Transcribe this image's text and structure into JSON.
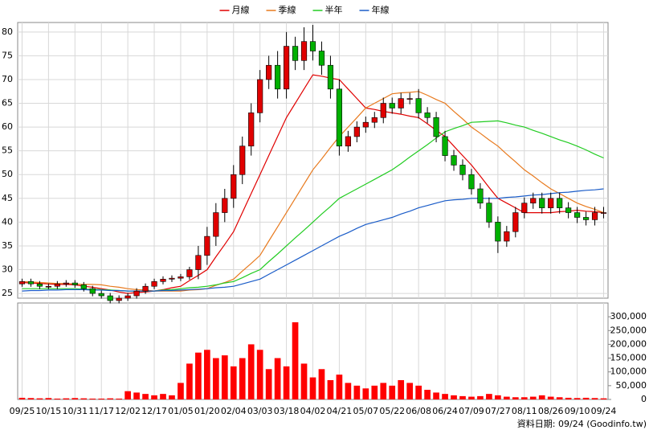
{
  "chart_data": {
    "type": "candlestick",
    "grid": true,
    "legend_position": "top",
    "up_color": "#e00000",
    "down_color": "#00b000",
    "categories": [
      "09/25",
      null,
      null,
      "10/15",
      null,
      null,
      "10/31",
      null,
      null,
      "11/17",
      null,
      null,
      "12/02",
      null,
      null,
      "12/17",
      null,
      null,
      "01/05",
      null,
      null,
      "01/20",
      null,
      null,
      "02/04",
      null,
      null,
      "03/03",
      null,
      null,
      "03/18",
      null,
      null,
      "04/02",
      null,
      null,
      "04/21",
      null,
      null,
      "05/07",
      null,
      null,
      "05/22",
      null,
      null,
      "06/08",
      null,
      null,
      "06/24",
      null,
      null,
      "07/09",
      null,
      null,
      "07/27",
      null,
      null,
      "08/11",
      null,
      null,
      "08/26",
      null,
      null,
      "09/10",
      null,
      null,
      "09/24"
    ],
    "open": [
      27,
      27.5,
      27,
      26.5,
      26.5,
      27,
      27.2,
      26.8,
      26,
      25,
      24.5,
      23.5,
      24,
      24.5,
      25.5,
      26.5,
      27.5,
      28,
      28.2,
      28.5,
      30,
      33,
      37,
      42,
      45,
      50,
      56,
      63,
      70,
      73,
      68,
      77,
      74,
      78,
      76,
      73,
      68,
      56,
      58,
      60,
      61,
      62,
      65,
      64,
      66,
      66,
      63,
      62,
      58,
      54,
      52,
      50,
      47,
      44,
      40,
      36,
      38,
      42,
      44,
      45,
      43,
      45,
      43,
      42,
      41,
      40.5,
      42
    ],
    "high": [
      28.1,
      28.1,
      27.6,
      27.1,
      27.6,
      27.8,
      27.8,
      27.4,
      26.6,
      25.6,
      25.1,
      24.6,
      25.1,
      26.1,
      27.1,
      28.1,
      28.6,
      28.8,
      29.1,
      30.6,
      35,
      39,
      44,
      47,
      52,
      58,
      65,
      72,
      75,
      76,
      80,
      79,
      81,
      81.5,
      78,
      75,
      70,
      59.2,
      61.2,
      62.2,
      63.2,
      66.2,
      66.2,
      67.2,
      67.2,
      68,
      64.2,
      63.2,
      59.2,
      55.2,
      53.2,
      51.2,
      48.2,
      45.2,
      41.2,
      39.2,
      43.2,
      45.2,
      46.2,
      46.2,
      46.2,
      46.2,
      44.2,
      43.2,
      42.2,
      43.2,
      43.2
    ],
    "low": [
      26.4,
      26.4,
      25.9,
      25.9,
      25.9,
      26.4,
      26.2,
      25.4,
      24.4,
      23.9,
      22.9,
      22.9,
      23.4,
      23.9,
      24.9,
      25.9,
      26.9,
      27.4,
      27.6,
      27.9,
      28,
      31,
      35,
      40,
      43,
      48,
      54,
      61,
      68,
      66,
      66,
      72,
      72,
      74,
      71,
      66,
      54,
      54.8,
      56.8,
      58.8,
      59.8,
      60.8,
      62.8,
      62.8,
      64.8,
      61.8,
      60.8,
      56.8,
      52.8,
      50.8,
      48.8,
      45.8,
      42.8,
      38.8,
      33.5,
      34.8,
      36.8,
      40.8,
      42.8,
      41.8,
      41.8,
      41.8,
      40.8,
      39.8,
      39.3,
      39.3,
      40.8
    ],
    "close": [
      27.5,
      27,
      26.5,
      26.5,
      27,
      27.2,
      26.8,
      26,
      25,
      24.5,
      23.5,
      24,
      24.5,
      25.5,
      26.5,
      27.5,
      28,
      28.2,
      28.5,
      30,
      33,
      37,
      42,
      45,
      50,
      56,
      63,
      70,
      73,
      68,
      77,
      74,
      78,
      76,
      73,
      68,
      56,
      58,
      60,
      61,
      62,
      65,
      64,
      66,
      66,
      63,
      62,
      58,
      54,
      52,
      50,
      47,
      44,
      40,
      36,
      38,
      42,
      44,
      45,
      43,
      45,
      43,
      42,
      41,
      40.5,
      42,
      42
    ],
    "ylim": [
      24,
      82
    ],
    "yticks": [
      25,
      30,
      35,
      40,
      45,
      50,
      55,
      60,
      65,
      70,
      75,
      80
    ],
    "series": [
      {
        "name": "月線",
        "color": "#e00000",
        "values": [
          27.3,
          27.2,
          27.1,
          27,
          26.9,
          26.9,
          26.8,
          26.5,
          26.3,
          26,
          25.7,
          25.3,
          25,
          25.2,
          25.3,
          25.5,
          25.8,
          26.2,
          26.5,
          27.7,
          28.8,
          30,
          32.7,
          35.3,
          38,
          42,
          46,
          50,
          54,
          58,
          62,
          65,
          68,
          71,
          70.7,
          70.3,
          70,
          68,
          66,
          64,
          63.7,
          63.3,
          63,
          62.7,
          62.3,
          62,
          60.7,
          59.3,
          58,
          56,
          54,
          52,
          49.7,
          47.3,
          45,
          44,
          43,
          42,
          42,
          42,
          42,
          42.2,
          42.3,
          42.5,
          42.3,
          42.2,
          42
        ]
      },
      {
        "name": "季線",
        "color": "#e87a1e",
        "values": [
          27.5,
          27.4,
          27.3,
          27.2,
          27.1,
          27.1,
          27,
          26.9,
          26.9,
          26.8,
          26.5,
          26.3,
          26,
          25.8,
          25.7,
          25.5,
          25.5,
          25.5,
          25.5,
          25.7,
          25.8,
          26,
          26.7,
          27.3,
          28,
          29.7,
          31.3,
          33,
          36,
          39,
          42,
          45,
          48,
          51,
          53.3,
          55.7,
          58,
          60,
          62,
          64,
          65,
          66,
          67,
          67.2,
          67.3,
          67.5,
          66.7,
          65.8,
          65,
          63.3,
          61.7,
          60,
          58.7,
          57.3,
          56,
          54.3,
          52.7,
          51,
          49.7,
          48.3,
          47,
          46,
          45,
          44,
          43.3,
          42.7,
          42
        ]
      },
      {
        "name": "半年",
        "color": "#22cc22",
        "values": [
          26,
          26,
          26,
          26,
          26,
          26,
          26,
          25.9,
          25.9,
          25.8,
          25.7,
          25.6,
          25.5,
          25.5,
          25.5,
          25.5,
          25.7,
          25.8,
          26,
          26.2,
          26.3,
          26.5,
          26.8,
          27.2,
          27.5,
          28.3,
          29.2,
          30,
          31.7,
          33.3,
          35,
          36.7,
          38.3,
          40,
          41.7,
          43.3,
          45,
          46,
          47,
          48,
          49,
          50,
          51,
          52.3,
          53.7,
          55,
          56.3,
          57.7,
          59,
          59.7,
          60.3,
          61,
          61.1,
          61.2,
          61.3,
          60.9,
          60.4,
          60,
          59.3,
          58.7,
          58,
          57.3,
          56.7,
          56,
          55.2,
          54.3,
          53.5
        ]
      },
      {
        "name": "年線",
        "color": "#1a5cc8",
        "values": [
          25.5,
          25.6,
          25.6,
          25.7,
          25.7,
          25.8,
          25.8,
          25.8,
          25.7,
          25.7,
          25.6,
          25.6,
          25.5,
          25.5,
          25.5,
          25.5,
          25.6,
          25.6,
          25.7,
          25.8,
          25.9,
          26,
          26.2,
          26.3,
          26.5,
          27,
          27.5,
          28,
          29,
          30,
          31,
          32,
          33,
          34,
          35,
          36,
          37,
          37.8,
          38.7,
          39.5,
          40,
          40.5,
          41,
          41.7,
          42.3,
          43,
          43.5,
          44,
          44.5,
          44.7,
          44.8,
          45,
          45,
          45,
          45,
          45.2,
          45.3,
          45.5,
          45.7,
          45.8,
          46,
          46.2,
          46.3,
          46.5,
          46.7,
          46.8,
          47
        ]
      }
    ],
    "volume": {
      "color": "#ff0000",
      "values": [
        6000,
        5000,
        4000,
        5000,
        3000,
        4000,
        5000,
        4000,
        3000,
        3000,
        4000,
        3000,
        30000,
        25000,
        20000,
        15000,
        20000,
        15000,
        60000,
        130000,
        170000,
        180000,
        150000,
        160000,
        120000,
        150000,
        200000,
        180000,
        110000,
        150000,
        120000,
        280000,
        130000,
        80000,
        110000,
        70000,
        90000,
        60000,
        50000,
        40000,
        50000,
        60000,
        50000,
        70000,
        60000,
        50000,
        35000,
        25000,
        20000,
        15000,
        12000,
        10000,
        12000,
        20000,
        15000,
        10000,
        8000,
        8000,
        10000,
        15000,
        10000,
        8000,
        6000,
        5000,
        6000,
        5000,
        4000
      ],
      "y2lim": [
        0,
        350000
      ],
      "y2ticks": [
        0,
        {
          "value": 50000,
          "label": "50,000"
        },
        {
          "value": 100000,
          "label": "100,000"
        },
        {
          "value": 150000,
          "label": "150,000"
        },
        {
          "value": 200000,
          "label": "200,000"
        },
        {
          "value": 250000,
          "label": "250,000"
        },
        {
          "value": 300000,
          "label": "300,000"
        }
      ]
    },
    "note": "資料日期: 09/24 (Goodinfo.tw)"
  }
}
